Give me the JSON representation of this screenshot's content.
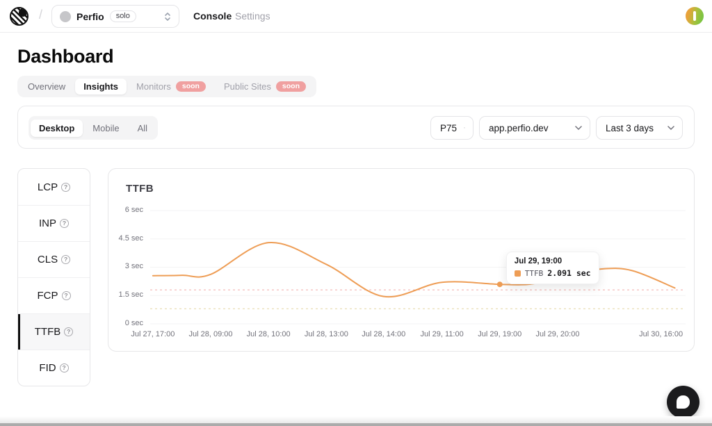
{
  "topbar": {
    "separator": "/",
    "project": {
      "name": "Perfio",
      "badge": "solo"
    },
    "nav": {
      "console": "Console",
      "settings": "Settings"
    }
  },
  "page": {
    "title": "Dashboard"
  },
  "tabs": {
    "items": [
      {
        "label": "Overview"
      },
      {
        "label": "Insights",
        "active": true
      },
      {
        "label": "Monitors",
        "badge": "soon"
      },
      {
        "label": "Public Sites",
        "badge": "soon"
      }
    ],
    "soon_badge_color": "#f0a0a0"
  },
  "filters": {
    "device": {
      "options": [
        "Desktop",
        "Mobile",
        "All"
      ],
      "selected": "Desktop"
    },
    "percentile": "P75",
    "site": "app.perfio.dev",
    "date_range": "Last 3 days"
  },
  "metrics": {
    "items": [
      "LCP",
      "INP",
      "CLS",
      "FCP",
      "TTFB",
      "FID"
    ],
    "selected": "TTFB"
  },
  "icons": {
    "help": "?"
  },
  "chart_data": {
    "type": "line",
    "title": "TTFB",
    "unit": "sec",
    "ylim": [
      0,
      6
    ],
    "grid": true,
    "y_ticks": [
      {
        "value": 6,
        "label": "6 sec"
      },
      {
        "value": 4.5,
        "label": "4.5 sec"
      },
      {
        "value": 3,
        "label": "3 sec"
      },
      {
        "value": 1.5,
        "label": "1.5 sec"
      },
      {
        "value": 0,
        "label": "0 sec"
      }
    ],
    "x_ticks": [
      {
        "pos": 0.005,
        "label": "Jul 27, 17:00"
      },
      {
        "pos": 0.113,
        "label": "Jul 28, 09:00"
      },
      {
        "pos": 0.221,
        "label": "Jul 28, 10:00"
      },
      {
        "pos": 0.329,
        "label": "Jul 28, 13:00"
      },
      {
        "pos": 0.436,
        "label": "Jul 28, 14:00"
      },
      {
        "pos": 0.545,
        "label": "Jul 29, 11:00"
      },
      {
        "pos": 0.653,
        "label": "Jul 29, 19:00"
      },
      {
        "pos": 0.761,
        "label": "Jul 29, 20:00"
      },
      {
        "pos": 0.954,
        "label": "Jul 30, 16:00"
      }
    ],
    "series": [
      {
        "name": "TTFB",
        "color": "#ee9d55",
        "points": [
          {
            "pos": 0.005,
            "value": 2.55
          },
          {
            "pos": 0.06,
            "value": 2.57
          },
          {
            "pos": 0.113,
            "value": 2.62
          },
          {
            "pos": 0.221,
            "value": 4.3
          },
          {
            "pos": 0.329,
            "value": 3.15
          },
          {
            "pos": 0.436,
            "value": 1.45
          },
          {
            "pos": 0.545,
            "value": 2.2
          },
          {
            "pos": 0.653,
            "value": 2.091
          },
          {
            "pos": 0.715,
            "value": 2.12
          },
          {
            "pos": 0.775,
            "value": 2.55
          },
          {
            "pos": 0.84,
            "value": 2.9
          },
          {
            "pos": 0.9,
            "value": 2.82
          },
          {
            "pos": 0.98,
            "value": 1.9
          }
        ]
      }
    ],
    "thresholds": [
      {
        "value": 1.8,
        "color": "#f2aaa6"
      },
      {
        "value": 0.8,
        "color": "#e3d6a2"
      }
    ],
    "grid_color": "#f3f3f4",
    "highlight": {
      "pos": 0.653,
      "value": 2.091,
      "tooltip": {
        "title": "Jul 29, 19:00",
        "series": "TTFB",
        "value_text": "2.091 sec"
      }
    }
  }
}
